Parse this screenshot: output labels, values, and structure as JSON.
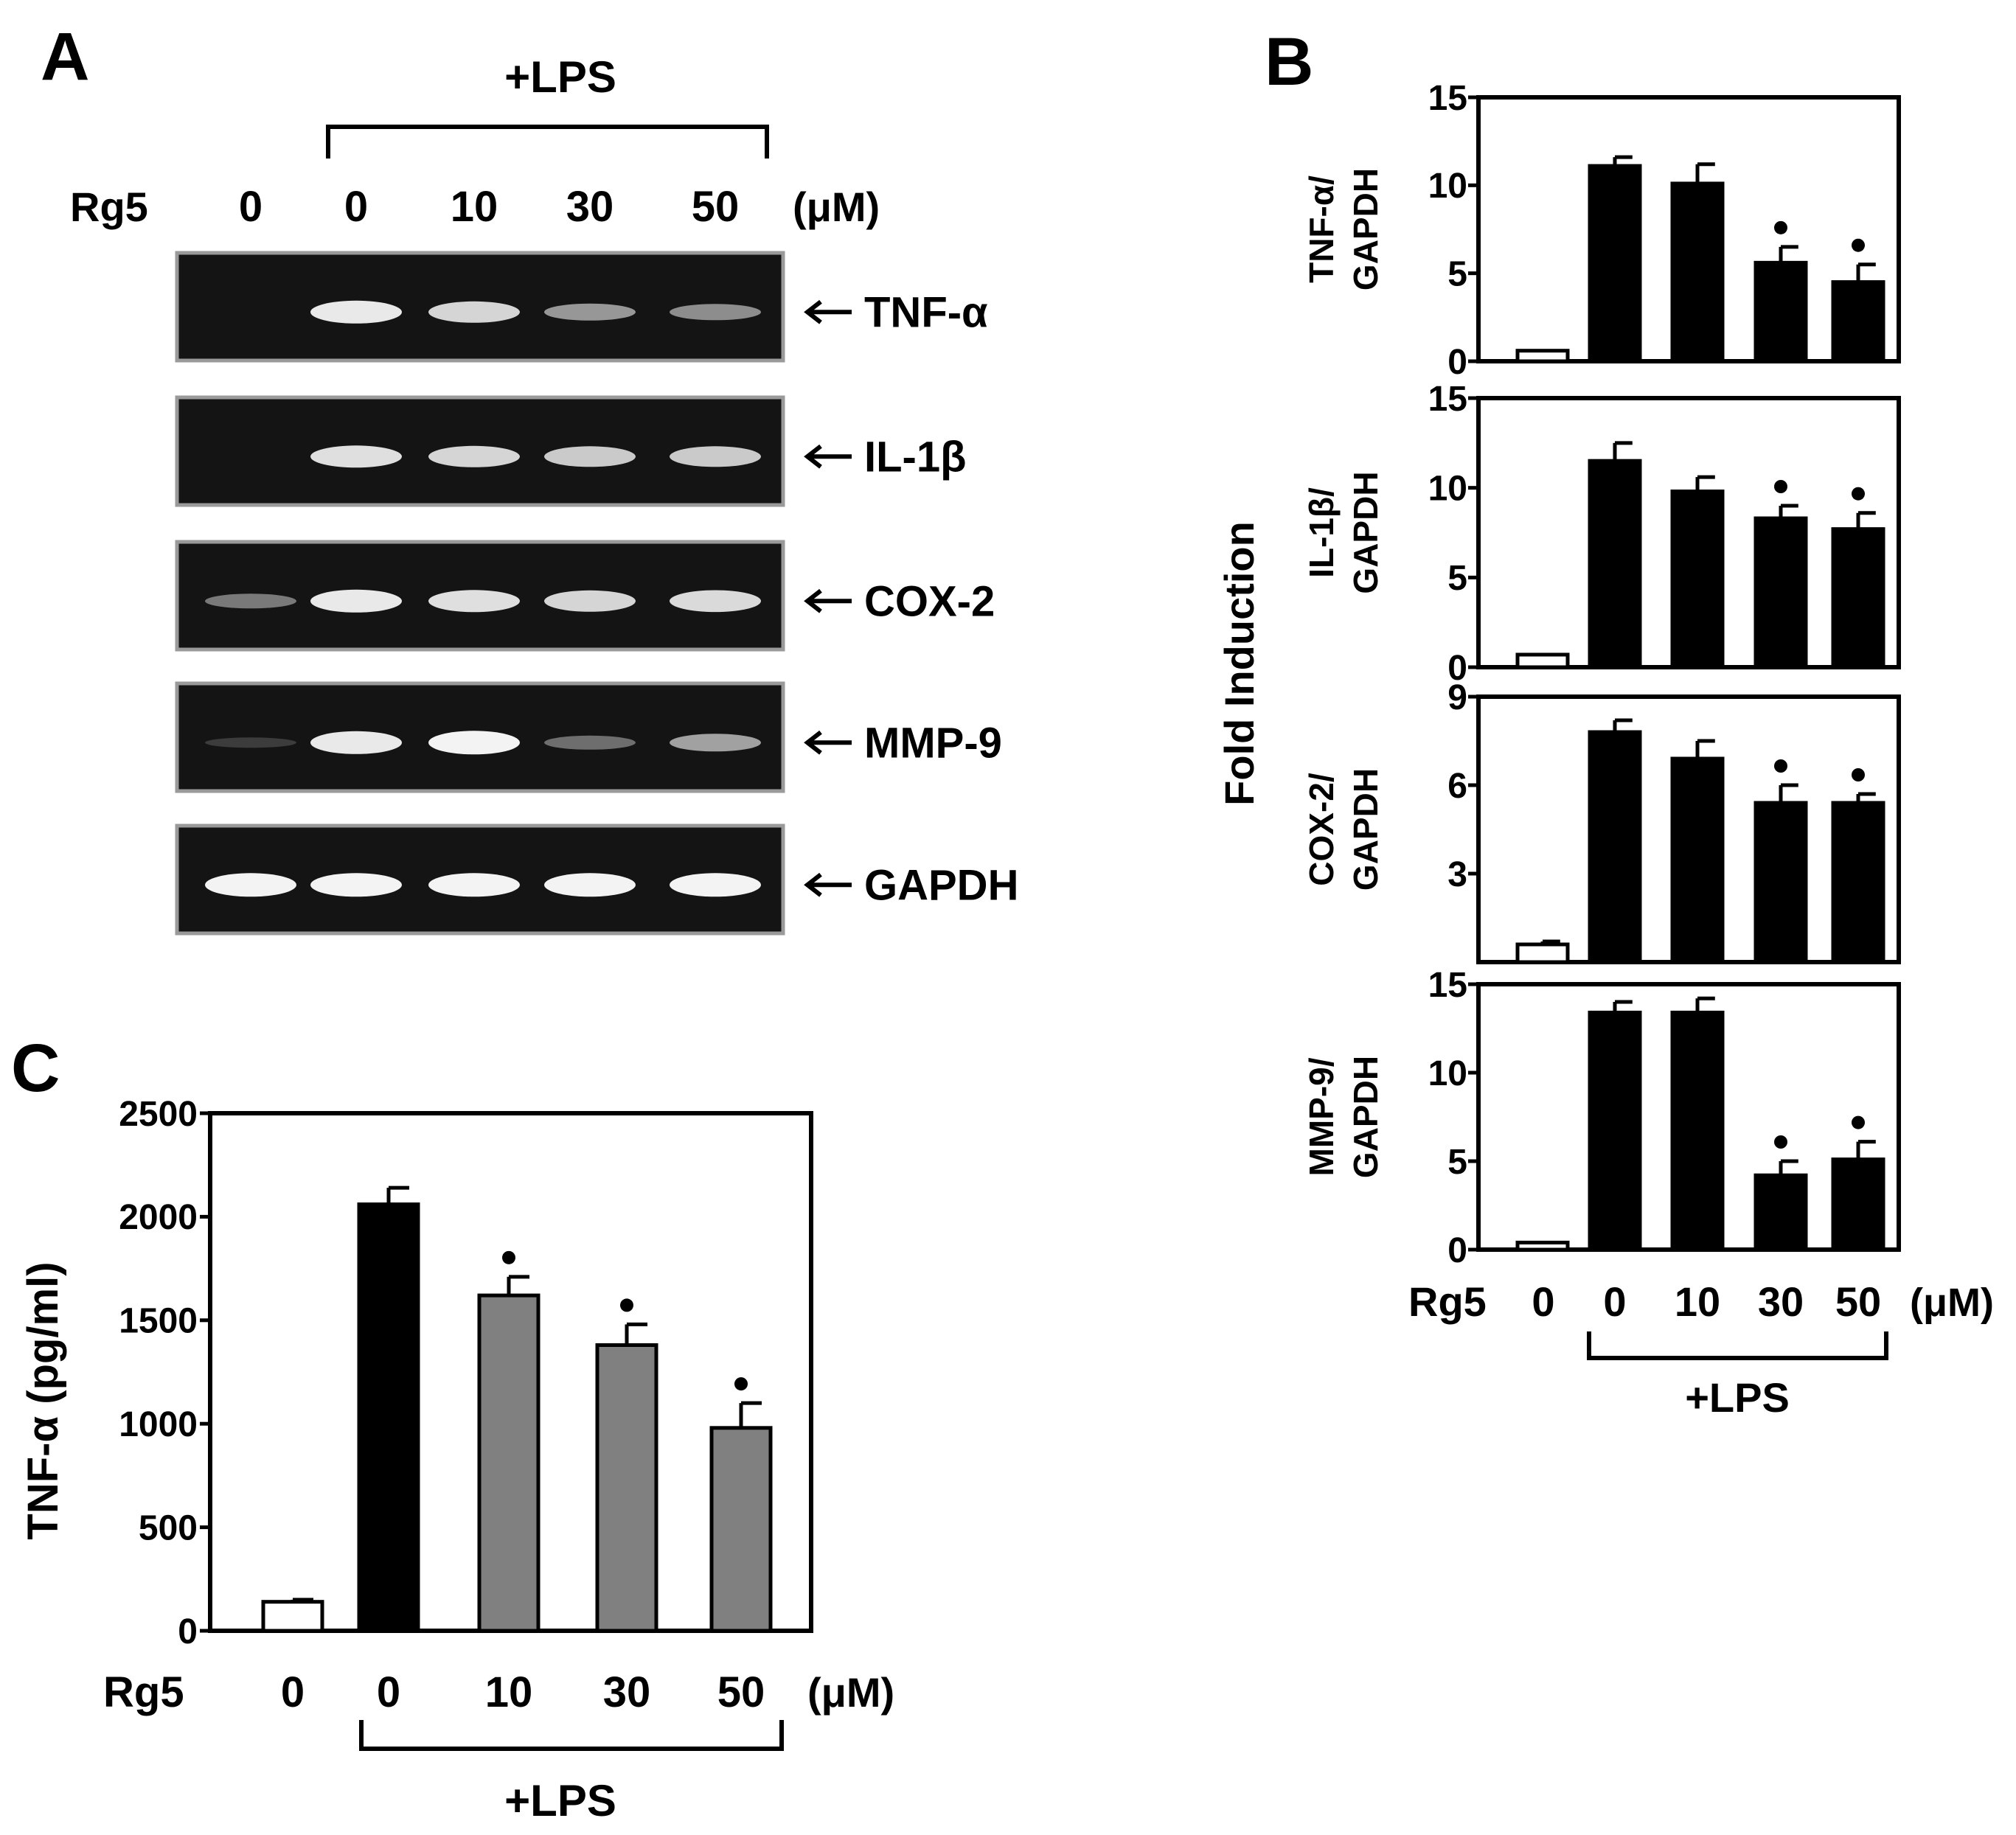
{
  "panels": {
    "A": {
      "letter": "A",
      "treatment_label": "+LPS",
      "row_label": "Rg5",
      "doses": [
        "0",
        "0",
        "10",
        "30",
        "50"
      ],
      "unit": "(μM)",
      "bands": [
        {
          "name": "TNF-α",
          "intensity": [
            0.02,
            0.95,
            0.85,
            0.55,
            0.5
          ]
        },
        {
          "name": "IL-1β",
          "intensity": [
            0.02,
            0.9,
            0.85,
            0.8,
            0.8
          ]
        },
        {
          "name": "COX-2",
          "intensity": [
            0.4,
            0.95,
            0.9,
            0.85,
            0.88
          ]
        },
        {
          "name": "MMP-9",
          "intensity": [
            0.1,
            0.95,
            1.0,
            0.35,
            0.6
          ]
        },
        {
          "name": "GAPDH",
          "intensity": [
            1.0,
            1.0,
            1.0,
            1.0,
            1.0
          ]
        }
      ]
    },
    "B": {
      "letter": "B",
      "shared_ylabel": "Fold Induction",
      "row_label": "Rg5",
      "doses": [
        "0",
        "0",
        "10",
        "30",
        "50"
      ],
      "unit": "(μM)",
      "treatment_label": "+LPS"
    },
    "C": {
      "letter": "C",
      "row_label": "Rg5",
      "doses": [
        "0",
        "0",
        "10",
        "30",
        "50"
      ],
      "unit": "(μM)",
      "treatment_label": "+LPS"
    }
  },
  "chart_data": [
    {
      "panel": "B",
      "type": "bar",
      "ylabel": [
        "TNF-α/",
        "GAPDH"
      ],
      "categories": [
        "0",
        "0",
        "10",
        "30",
        "50"
      ],
      "values": [
        0.6,
        11.1,
        10.1,
        5.6,
        4.5
      ],
      "errors": [
        0.1,
        0.5,
        1.1,
        0.9,
        1.0
      ],
      "significant": [
        false,
        false,
        false,
        true,
        true
      ],
      "fills": [
        "#ffffff",
        "#000000",
        "#000000",
        "#000000",
        "#000000"
      ],
      "ylim": [
        0,
        15
      ],
      "yticks": [
        0,
        5,
        10,
        15
      ]
    },
    {
      "panel": "B",
      "type": "bar",
      "ylabel": [
        "IL-1β/",
        "GAPDH"
      ],
      "categories": [
        "0",
        "0",
        "10",
        "30",
        "50"
      ],
      "values": [
        0.7,
        11.5,
        9.8,
        8.3,
        7.7
      ],
      "errors": [
        0.1,
        1.0,
        0.8,
        0.7,
        0.9
      ],
      "significant": [
        false,
        false,
        false,
        true,
        true
      ],
      "fills": [
        "#ffffff",
        "#000000",
        "#000000",
        "#000000",
        "#000000"
      ],
      "ylim": [
        0,
        15
      ],
      "yticks": [
        0,
        5,
        10,
        15
      ]
    },
    {
      "panel": "B",
      "type": "bar",
      "ylabel": [
        "COX-2/",
        "GAPDH"
      ],
      "categories": [
        "0",
        "0",
        "10",
        "30",
        "50"
      ],
      "values": [
        0.6,
        7.8,
        6.9,
        5.4,
        5.4
      ],
      "errors": [
        0.1,
        0.4,
        0.6,
        0.6,
        0.3
      ],
      "significant": [
        false,
        false,
        false,
        true,
        true
      ],
      "fills": [
        "#ffffff",
        "#000000",
        "#000000",
        "#000000",
        "#000000"
      ],
      "ylim": [
        0,
        9
      ],
      "yticks": [
        3,
        6,
        9
      ]
    },
    {
      "panel": "B",
      "type": "bar",
      "ylabel": [
        "MMP-9/",
        "GAPDH"
      ],
      "categories": [
        "0",
        "0",
        "10",
        "30",
        "50"
      ],
      "values": [
        0.4,
        13.4,
        13.4,
        4.2,
        5.1
      ],
      "errors": [
        0.1,
        0.6,
        0.8,
        0.8,
        1.0
      ],
      "significant": [
        false,
        false,
        false,
        true,
        true
      ],
      "fills": [
        "#ffffff",
        "#000000",
        "#000000",
        "#000000",
        "#000000"
      ],
      "ylim": [
        0,
        15
      ],
      "yticks": [
        0,
        5,
        10,
        15
      ]
    },
    {
      "panel": "C",
      "type": "bar",
      "ylabel": "TNF-α (pg/ml)",
      "categories": [
        "0",
        "0",
        "10",
        "30",
        "50"
      ],
      "values": [
        140,
        2060,
        1620,
        1380,
        980
      ],
      "errors": [
        10,
        80,
        90,
        100,
        120
      ],
      "significant": [
        false,
        false,
        true,
        true,
        true
      ],
      "fills": [
        "#ffffff",
        "#000000",
        "#808080",
        "#808080",
        "#808080"
      ],
      "ylim": [
        0,
        2500
      ],
      "yticks": [
        0,
        500,
        1000,
        1500,
        2000,
        2500
      ]
    }
  ]
}
